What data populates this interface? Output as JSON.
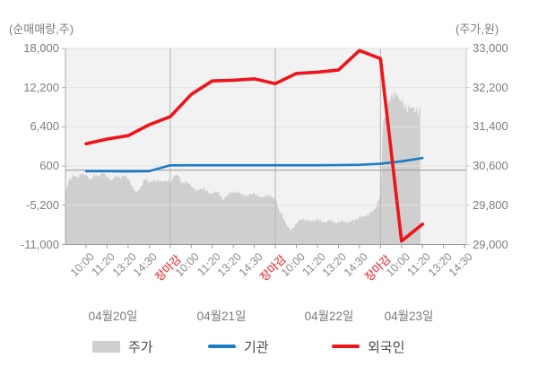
{
  "chart_data": {
    "type": "area",
    "title": "",
    "left_axis": {
      "label": "(순매매량,주)",
      "ticks": [
        18000,
        12200,
        6400,
        600,
        -5200,
        -11000
      ],
      "range": [
        -11000,
        18000
      ]
    },
    "right_axis": {
      "label": "(주가,원)",
      "ticks": [
        33000,
        32200,
        31400,
        30600,
        29800,
        29000
      ],
      "range": [
        29000,
        33000
      ]
    },
    "x_axis": {
      "time_labels": [
        "10:00",
        "11:20",
        "13:20",
        "14:30",
        "장마감",
        "10:00",
        "11:20",
        "13:20",
        "14:30",
        "장마감",
        "10:00",
        "11:20",
        "13:20",
        "14:30",
        "장마감",
        "10:00",
        "11:20",
        "13:20",
        "14:30"
      ],
      "close_label": "장마감",
      "date_labels": [
        "04월20일",
        "04월21일",
        "04월22일",
        "04월23일"
      ],
      "day_boundary_ticks": [
        4,
        9,
        14
      ]
    },
    "reference_line_value": 0,
    "series": [
      {
        "name": "주가",
        "type": "area",
        "axis": "right",
        "color": "#cfcfcf",
        "points": [
          [
            -0.98,
            30080
          ],
          [
            -0.85,
            30260
          ],
          [
            -0.6,
            30430
          ],
          [
            -0.4,
            30350
          ],
          [
            -0.2,
            30450
          ],
          [
            0,
            30420
          ],
          [
            0.2,
            30300
          ],
          [
            0.4,
            30440
          ],
          [
            0.6,
            30370
          ],
          [
            0.8,
            30480
          ],
          [
            1,
            30380
          ],
          [
            1.2,
            30300
          ],
          [
            1.4,
            30410
          ],
          [
            1.6,
            30350
          ],
          [
            1.8,
            30430
          ],
          [
            2,
            30340
          ],
          [
            2.2,
            30180
          ],
          [
            2.4,
            30060
          ],
          [
            2.6,
            30150
          ],
          [
            2.8,
            30360
          ],
          [
            3,
            30250
          ],
          [
            3.2,
            30320
          ],
          [
            3.5,
            30280
          ],
          [
            3.8,
            30310
          ],
          [
            4.05,
            30240
          ],
          [
            4.15,
            30400
          ],
          [
            4.35,
            30430
          ],
          [
            4.55,
            30240
          ],
          [
            4.75,
            30290
          ],
          [
            5,
            30190
          ],
          [
            5.3,
            30090
          ],
          [
            5.6,
            30160
          ],
          [
            5.9,
            30020
          ],
          [
            6.2,
            30100
          ],
          [
            6.5,
            29920
          ],
          [
            6.8,
            30040
          ],
          [
            7.1,
            30080
          ],
          [
            7.4,
            30020
          ],
          [
            7.7,
            29990
          ],
          [
            8,
            30060
          ],
          [
            8.3,
            29950
          ],
          [
            8.6,
            30010
          ],
          [
            8.9,
            29960
          ],
          [
            9.05,
            29940
          ],
          [
            9.15,
            29700
          ],
          [
            9.3,
            29620
          ],
          [
            9.5,
            29440
          ],
          [
            9.72,
            29270
          ],
          [
            9.9,
            29370
          ],
          [
            10.1,
            29480
          ],
          [
            10.4,
            29520
          ],
          [
            10.7,
            29460
          ],
          [
            11,
            29520
          ],
          [
            11.3,
            29450
          ],
          [
            11.6,
            29500
          ],
          [
            11.9,
            29440
          ],
          [
            12.2,
            29480
          ],
          [
            12.5,
            29450
          ],
          [
            12.8,
            29510
          ],
          [
            13.1,
            29560
          ],
          [
            13.45,
            29610
          ],
          [
            13.75,
            29730
          ],
          [
            13.95,
            29950
          ],
          [
            14.03,
            30060
          ],
          [
            14.1,
            31430
          ],
          [
            14.25,
            31680
          ],
          [
            14.4,
            31920
          ],
          [
            14.6,
            32030
          ],
          [
            14.75,
            32140
          ],
          [
            14.9,
            31930
          ],
          [
            15.05,
            31890
          ],
          [
            15.25,
            31790
          ],
          [
            15.55,
            31770
          ],
          [
            15.8,
            31730
          ],
          [
            15.9,
            31720
          ]
        ]
      },
      {
        "name": "기관",
        "type": "line",
        "axis": "left",
        "color": "#1a7cc4",
        "values": [
          -150,
          -150,
          -200,
          -150,
          700,
          720,
          720,
          720,
          720,
          720,
          720,
          720,
          740,
          780,
          950,
          1300,
          1800
        ]
      },
      {
        "name": "외국인",
        "type": "line",
        "axis": "left",
        "color": "#ee141b",
        "values": [
          3900,
          4600,
          5100,
          6700,
          7900,
          11200,
          13200,
          13300,
          13500,
          12800,
          14300,
          14500,
          14800,
          17700,
          16500,
          -10500,
          -8000
        ]
      }
    ]
  },
  "legend": {
    "items": [
      {
        "label": "주가",
        "color": "#cfcfcf",
        "swatch": "area"
      },
      {
        "label": "기관",
        "color": "#1a7cc4",
        "swatch": "line"
      },
      {
        "label": "외국인",
        "color": "#ee141b",
        "swatch": "line"
      }
    ]
  },
  "colors": {
    "plot_background": "#f2f2f2",
    "grid_horizontal": "#e2e2e2",
    "grid_vertical": "#b4b4b4",
    "zero_line": "#999999",
    "axis_line": "#9a9a9a",
    "tick_text": "#7d7d7d",
    "time_text": "#8a8a8a",
    "close_text": "#ee141b"
  }
}
